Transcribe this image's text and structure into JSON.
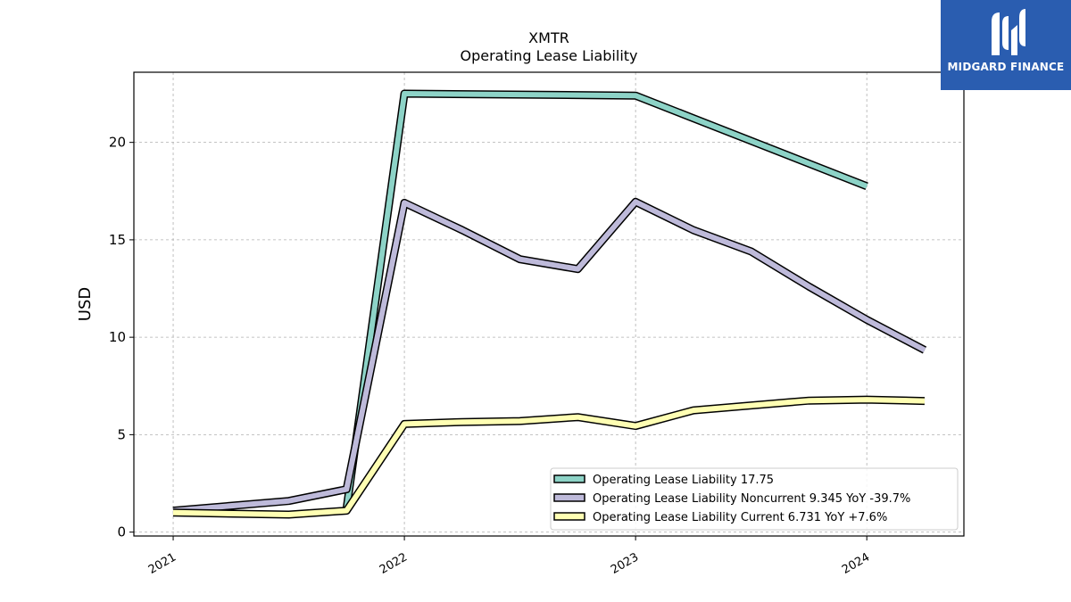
{
  "brand": {
    "name": "MIDGARD FINANCE",
    "logo_icon": "midgard-logo-icon",
    "bg_color": "#2a5db0"
  },
  "chart_data": {
    "type": "line",
    "title": "XMTR",
    "subtitle": "Operating Lease Liability",
    "xlabel": "",
    "ylabel": "USD",
    "xlim": [
      2020.83,
      2024.42
    ],
    "ylim": [
      -0.2,
      23.6
    ],
    "x_ticks": [
      2021,
      2022,
      2023,
      2024
    ],
    "x_tick_labels": [
      "2021",
      "2022",
      "2023",
      "2024"
    ],
    "y_ticks": [
      0,
      5,
      10,
      15,
      20
    ],
    "y_tick_labels": [
      "0",
      "5",
      "10",
      "15",
      "20"
    ],
    "grid": true,
    "legend_position": "lower-right",
    "series": [
      {
        "name": "Operating Lease Liability",
        "legend_label": "Operating Lease Liability  17.75",
        "color": "#8dd3c7",
        "points": [
          [
            2021.75,
            1.2
          ],
          [
            2022.0,
            22.5
          ],
          [
            2023.0,
            22.4
          ],
          [
            2024.0,
            17.75
          ]
        ]
      },
      {
        "name": "Operating Lease Liability Noncurrent",
        "legend_label": "Operating Lease Liability Noncurrent  9.345 YoY -39.7%",
        "color": "#bebada",
        "points": [
          [
            2021.0,
            1.1
          ],
          [
            2021.5,
            1.6
          ],
          [
            2021.75,
            2.2
          ],
          [
            2022.0,
            16.9
          ],
          [
            2022.25,
            15.5
          ],
          [
            2022.5,
            14.0
          ],
          [
            2022.75,
            13.5
          ],
          [
            2023.0,
            16.95
          ],
          [
            2023.25,
            15.5
          ],
          [
            2023.5,
            14.4
          ],
          [
            2023.75,
            12.6
          ],
          [
            2024.0,
            10.9
          ],
          [
            2024.25,
            9.345
          ]
        ]
      },
      {
        "name": "Operating Lease Liability Current",
        "legend_label": "Operating Lease Liability Current  6.731 YoY +7.6%",
        "color": "#ffffb3",
        "points": [
          [
            2021.0,
            1.0
          ],
          [
            2021.5,
            0.9
          ],
          [
            2021.75,
            1.1
          ],
          [
            2022.0,
            5.55
          ],
          [
            2022.25,
            5.65
          ],
          [
            2022.5,
            5.7
          ],
          [
            2022.75,
            5.9
          ],
          [
            2023.0,
            5.45
          ],
          [
            2023.25,
            6.25
          ],
          [
            2023.5,
            6.5
          ],
          [
            2023.75,
            6.75
          ],
          [
            2024.0,
            6.8
          ],
          [
            2024.25,
            6.731
          ]
        ]
      }
    ]
  }
}
